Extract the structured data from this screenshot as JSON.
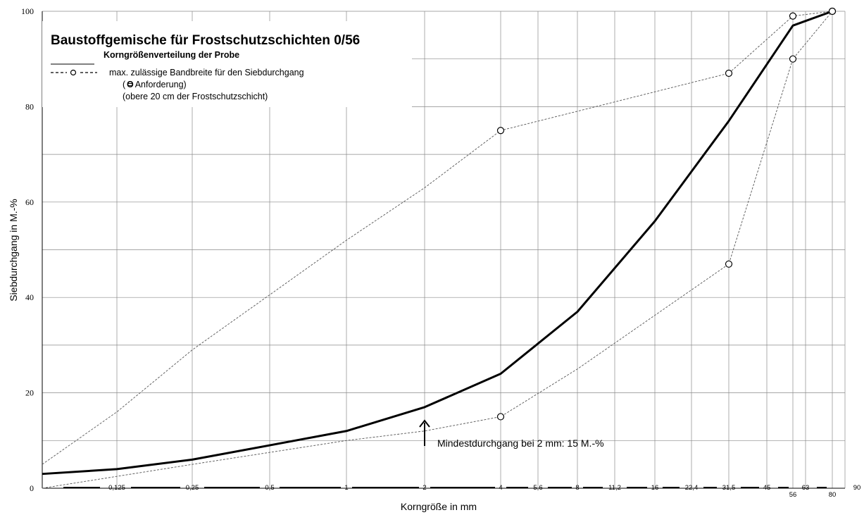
{
  "chart_data": {
    "type": "line",
    "title": "Baustoffgemische für Frostschutzschichten 0/56",
    "xlabel": "Korngröße in mm",
    "ylabel": "Siebdurchgang in M.-%",
    "ylim": [
      0,
      100
    ],
    "y_ticks": [
      "0",
      "20",
      "40",
      "60",
      "80",
      "100"
    ],
    "x_tick_labels": [
      "0,125",
      "0,25",
      "0,5",
      "1",
      "2",
      "4",
      "5,6",
      "8",
      "11,2",
      "16",
      "22,4",
      "31,5",
      "45",
      "56",
      "63",
      "80",
      "90"
    ],
    "legend": {
      "sample_label": "Korngrößenverteilung der Probe",
      "band_label": "max. zulässige Bandbreite für den Siebdurchgang",
      "requirement_note": "( = Anforderung)",
      "requirement_o": "O",
      "layer_note": "(obere 20 cm der Frostschutzschicht)"
    },
    "annotation": {
      "text": "Mindestdurchgang bei 2 mm: 15 M.-%",
      "at_sieve": "2"
    },
    "series": [
      {
        "name": "Korngrößenverteilung der Probe",
        "style": "solid",
        "points": [
          {
            "x": "0,063",
            "y": 3
          },
          {
            "x": "0,125",
            "y": 4
          },
          {
            "x": "0,25",
            "y": 6
          },
          {
            "x": "0,5",
            "y": 9
          },
          {
            "x": "1",
            "y": 12
          },
          {
            "x": "2",
            "y": 17
          },
          {
            "x": "4",
            "y": 24
          },
          {
            "x": "8",
            "y": 37
          },
          {
            "x": "16",
            "y": 56
          },
          {
            "x": "31,5",
            "y": 77
          },
          {
            "x": "56",
            "y": 97
          },
          {
            "x": "80",
            "y": 100
          }
        ]
      },
      {
        "name": "max. zulässige Bandbreite – obere Grenze",
        "style": "dashed",
        "points": [
          {
            "x": "0,063",
            "y": 5
          },
          {
            "x": "0,125",
            "y": 16
          },
          {
            "x": "0,25",
            "y": 29
          },
          {
            "x": "1",
            "y": 52
          },
          {
            "x": "2",
            "y": 63
          },
          {
            "x": "4",
            "y": 75,
            "marker": true
          },
          {
            "x": "31,5",
            "y": 87,
            "marker": true
          },
          {
            "x": "56",
            "y": 99,
            "marker": true
          },
          {
            "x": "80",
            "y": 100,
            "marker": true
          }
        ]
      },
      {
        "name": "max. zulässige Bandbreite – untere Grenze",
        "style": "dashed",
        "points": [
          {
            "x": "0,063",
            "y": 0
          },
          {
            "x": "0,25",
            "y": 5
          },
          {
            "x": "1",
            "y": 10
          },
          {
            "x": "2",
            "y": 12
          },
          {
            "x": "4",
            "y": 15,
            "marker": true
          },
          {
            "x": "8",
            "y": 25
          },
          {
            "x": "31,5",
            "y": 47,
            "marker": true
          },
          {
            "x": "56",
            "y": 90,
            "marker": true
          },
          {
            "x": "80",
            "y": 100,
            "marker": true
          }
        ]
      }
    ],
    "colors": {
      "lines": "#000000",
      "grid": "#8a8a8a",
      "background": "#ffffff"
    },
    "grid": true
  }
}
